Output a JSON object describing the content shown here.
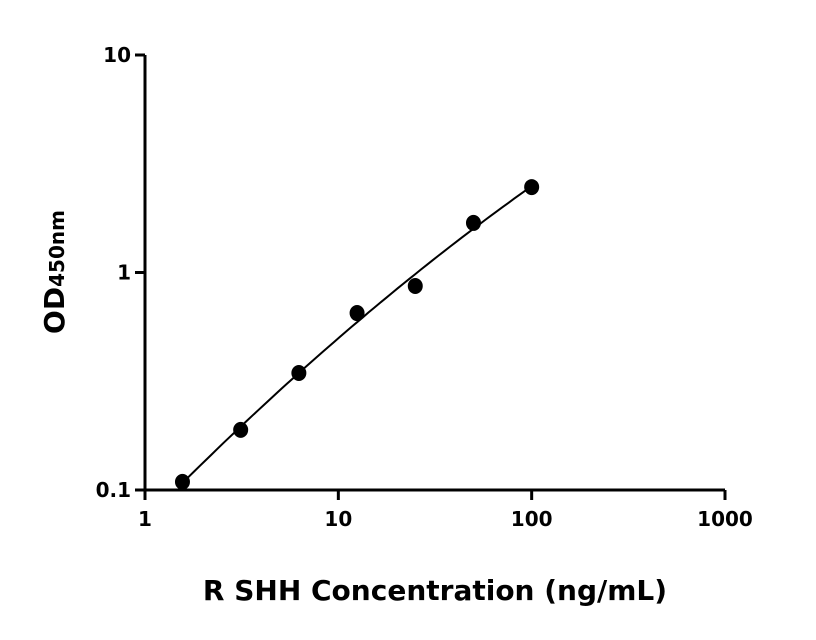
{
  "chart_data": {
    "type": "scatter",
    "title": "",
    "xlabel": "R SHH Concentration (ng/mL)",
    "ylabel_main": "OD",
    "ylabel_sub": "450nm",
    "x_scale": "log",
    "y_scale": "log",
    "xlim": [
      1,
      1000
    ],
    "ylim": [
      0.1,
      10
    ],
    "x_ticks": [
      "1",
      "10",
      "100",
      "1000"
    ],
    "y_ticks": [
      "0.1",
      "1",
      "10"
    ],
    "grid": false,
    "legend": "none",
    "fit_curve": true,
    "colors": {
      "points": "#000000",
      "curve": "#000000"
    },
    "series": [
      {
        "x": [
          1.5625,
          3.125,
          6.25,
          12.5,
          25,
          50,
          100
        ],
        "y": [
          0.109,
          0.189,
          0.345,
          0.651,
          0.867,
          1.69,
          2.47
        ]
      }
    ]
  }
}
